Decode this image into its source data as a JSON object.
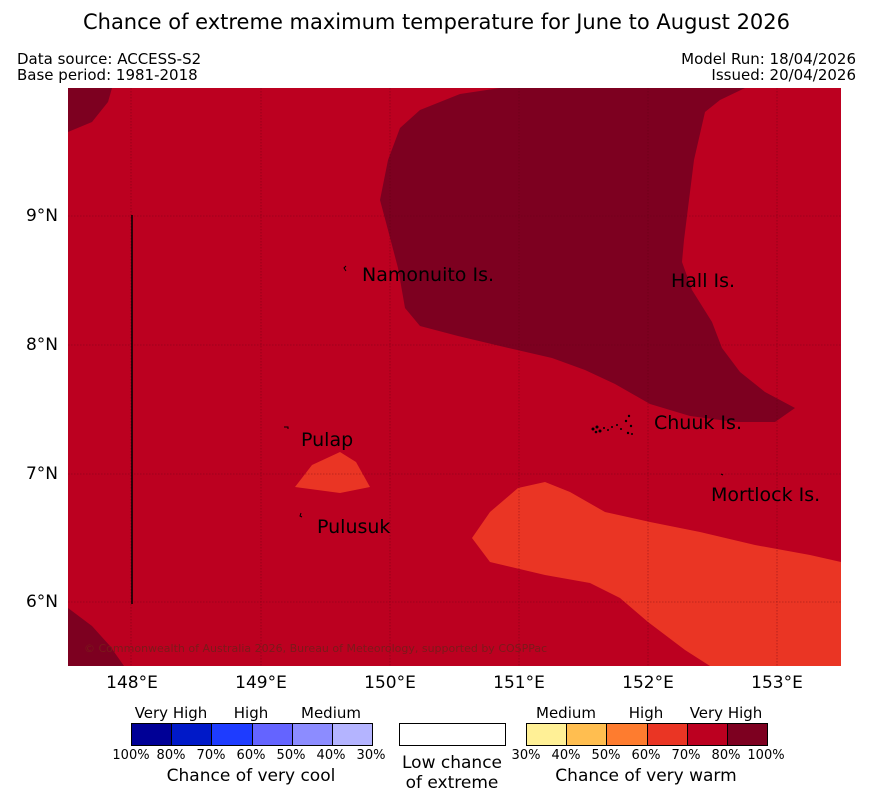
{
  "title": "Chance of extreme maximum temperature for June to August 2026",
  "data_source": "Data source: ACCESS-S2",
  "base_period": "Base period: 1981-2018",
  "model_run": "Model Run: 18/04/2026",
  "issued": "Issued: 20/04/2026",
  "copyright": "© Commonwealth of Australia 2026, Bureau of Meteorology, supported by COSPPac",
  "places": {
    "namonuito": "Namonuito Is.",
    "hall": "Hall Is.",
    "pulap": "Pulap",
    "chuuk": "Chuuk Is.",
    "mortlock": "Mortlock Is.",
    "pulusuk": "Pulusuk"
  },
  "axes": {
    "x_ticks": [
      "148°E",
      "149°E",
      "150°E",
      "151°E",
      "152°E",
      "153°E"
    ],
    "y_ticks": [
      "9°N",
      "8°N",
      "7°N",
      "6°N"
    ]
  },
  "colors": {
    "base": "#bc0020",
    "very_high_100": "#7d0020",
    "band_60_70": "#ea3524"
  },
  "legend": {
    "cool": {
      "levels": [
        "Very High",
        "High",
        "Medium"
      ],
      "colors": [
        "#000096",
        "#0019c8",
        "#1e3cff",
        "#6464ff",
        "#8c8cff",
        "#b4b4ff"
      ],
      "ticks": [
        "100%",
        "80%",
        "70%",
        "60%",
        "50%",
        "40%",
        "30%"
      ],
      "caption": "Chance of very cool"
    },
    "low": {
      "caption_line1": "Low chance",
      "caption_line2": "of extreme"
    },
    "warm": {
      "levels": [
        "Medium",
        "High",
        "Very High"
      ],
      "colors": [
        "#fff096",
        "#ffbe50",
        "#fe7c2f",
        "#ea3524",
        "#bc0020",
        "#7d0020"
      ],
      "ticks": [
        "30%",
        "40%",
        "50%",
        "60%",
        "70%",
        "80%",
        "100%"
      ],
      "caption": "Chance of very warm"
    }
  }
}
